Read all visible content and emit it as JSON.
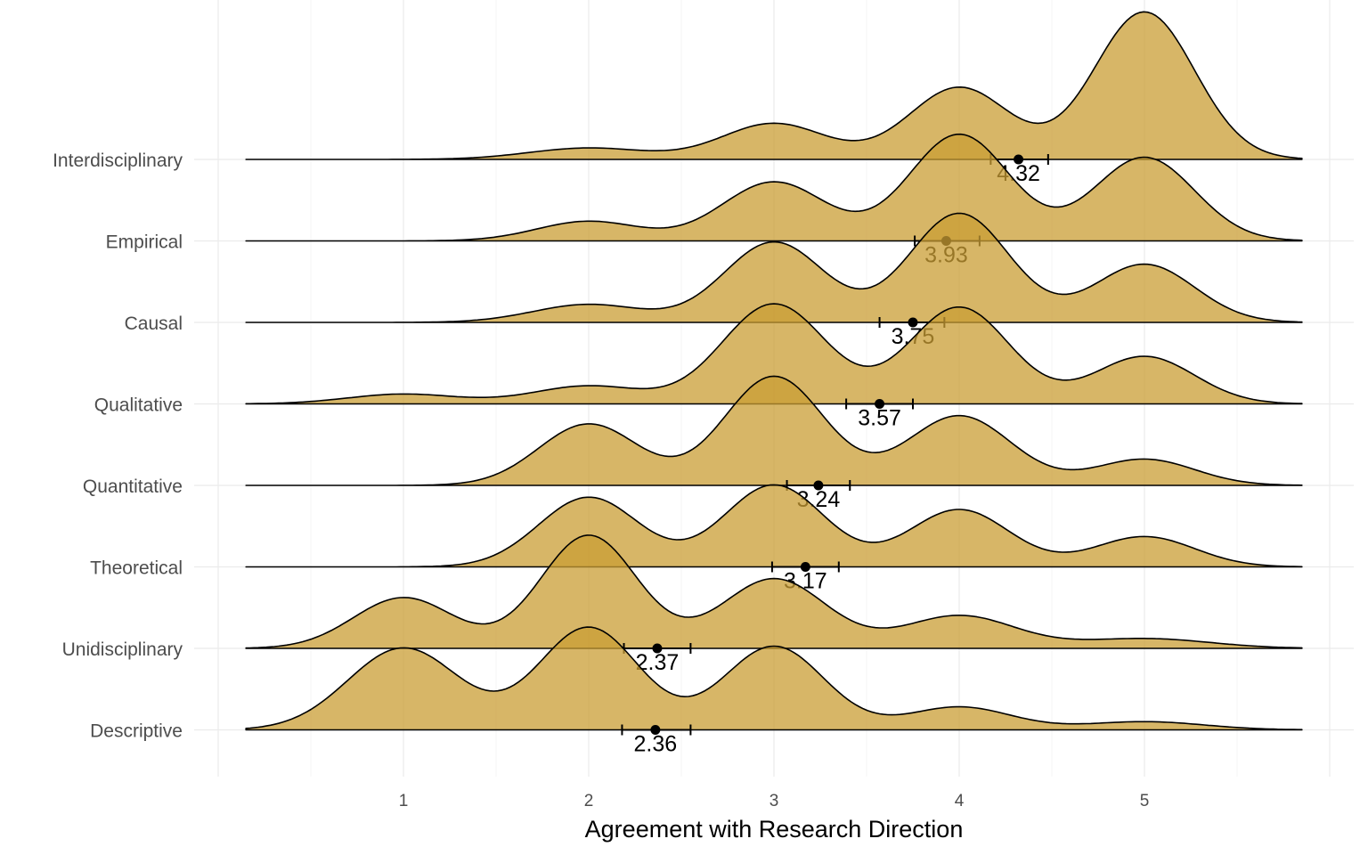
{
  "chart_data": {
    "type": "ridgeline",
    "xlabel": "Agreement with Research Direction",
    "x_ticks": [
      1,
      2,
      3,
      4,
      5
    ],
    "xlim": [
      -0.1,
      5.98
    ],
    "density_range": [
      0.15,
      5.85
    ],
    "fill_color": "#c99e34",
    "fill_opacity": 0.75,
    "line_color": "#000000",
    "grid": true,
    "legend": "none",
    "categories": [
      {
        "name": "Descriptive",
        "mean": 2.36,
        "ci": [
          2.18,
          2.55
        ],
        "mean_label": "2.36",
        "peaks": [
          [
            1,
            1.0,
            0.3
          ],
          [
            2,
            1.25,
            0.27
          ],
          [
            3,
            1.02,
            0.27
          ],
          [
            4,
            0.28,
            0.28
          ],
          [
            5,
            0.1,
            0.32
          ]
        ]
      },
      {
        "name": "Unidisciplinary",
        "mean": 2.37,
        "ci": [
          2.19,
          2.55
        ],
        "mean_label": "2.37",
        "peaks": [
          [
            1,
            0.62,
            0.27
          ],
          [
            2,
            1.38,
            0.26
          ],
          [
            3,
            0.85,
            0.28
          ],
          [
            4,
            0.4,
            0.3
          ],
          [
            5,
            0.12,
            0.35
          ]
        ]
      },
      {
        "name": "Theoretical",
        "mean": 3.17,
        "ci": [
          2.99,
          3.35
        ],
        "mean_label": "3.17",
        "peaks": [
          [
            2,
            0.85,
            0.27
          ],
          [
            3,
            1.0,
            0.27
          ],
          [
            4,
            0.7,
            0.27
          ],
          [
            5,
            0.37,
            0.27
          ]
        ]
      },
      {
        "name": "Quantitative",
        "mean": 3.24,
        "ci": [
          3.07,
          3.41
        ],
        "mean_label": "3.24",
        "peaks": [
          [
            2,
            0.75,
            0.27
          ],
          [
            3,
            1.33,
            0.27
          ],
          [
            4,
            0.85,
            0.28
          ],
          [
            5,
            0.32,
            0.27
          ]
        ]
      },
      {
        "name": "Qualitative",
        "mean": 3.57,
        "ci": [
          3.39,
          3.75
        ],
        "mean_label": "3.57",
        "peaks": [
          [
            1,
            0.12,
            0.3
          ],
          [
            2,
            0.22,
            0.3
          ],
          [
            3,
            1.22,
            0.28
          ],
          [
            4,
            1.18,
            0.27
          ],
          [
            5,
            0.58,
            0.27
          ]
        ]
      },
      {
        "name": "Causal",
        "mean": 3.75,
        "ci": [
          3.57,
          3.92
        ],
        "mean_label": "3.75",
        "peaks": [
          [
            2,
            0.22,
            0.3
          ],
          [
            3,
            0.98,
            0.27
          ],
          [
            4,
            1.33,
            0.27
          ],
          [
            5,
            0.71,
            0.27
          ]
        ]
      },
      {
        "name": "Empirical",
        "mean": 3.93,
        "ci": [
          3.76,
          4.11
        ],
        "mean_label": "3.93",
        "peaks": [
          [
            2,
            0.24,
            0.28
          ],
          [
            3,
            0.72,
            0.28
          ],
          [
            4,
            1.3,
            0.27
          ],
          [
            5,
            1.02,
            0.27
          ]
        ]
      },
      {
        "name": "Interdisciplinary",
        "mean": 4.32,
        "ci": [
          4.17,
          4.48
        ],
        "mean_label": "4.32",
        "peaks": [
          [
            2,
            0.14,
            0.32
          ],
          [
            3,
            0.44,
            0.28
          ],
          [
            4,
            0.88,
            0.27
          ],
          [
            5,
            1.8,
            0.27
          ]
        ]
      }
    ]
  }
}
